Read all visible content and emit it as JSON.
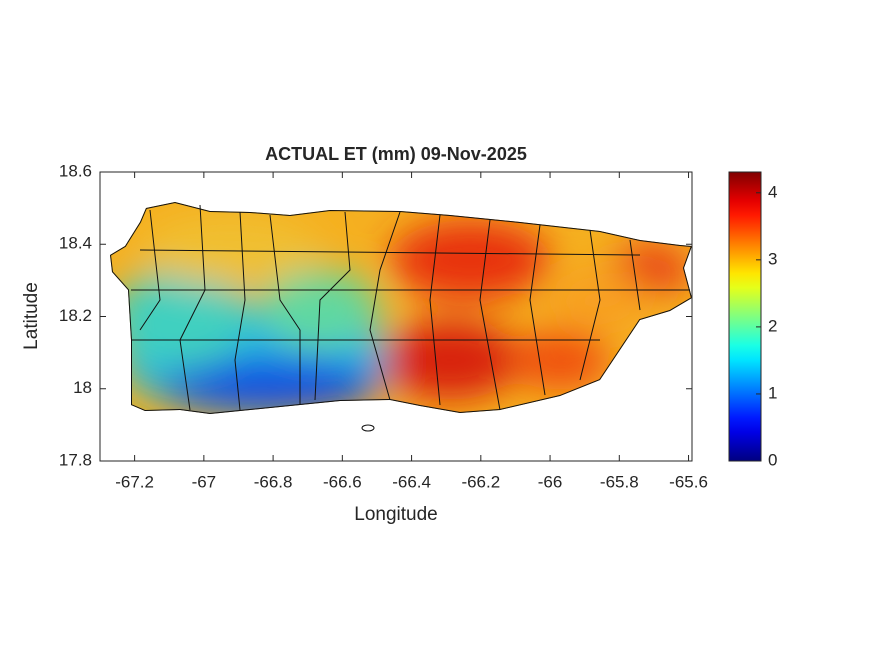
{
  "chart_data": {
    "type": "map",
    "title": "ACTUAL ET (mm) 09-Nov-2025",
    "xlabel": "Longitude",
    "ylabel": "Latitude",
    "xlim": [
      -67.3,
      -65.59
    ],
    "xticks": [
      -67.2,
      -67,
      -66.8,
      -66.6,
      -66.4,
      -66.2,
      -66,
      -65.8,
      -65.6
    ],
    "ylim": [
      17.8,
      18.6
    ],
    "yticks": [
      17.8,
      18,
      18.2,
      18.4,
      18.6
    ],
    "colormap": "jet",
    "clim": [
      0,
      4.31
    ],
    "cticks": [
      0,
      1,
      2,
      3,
      4
    ]
  }
}
